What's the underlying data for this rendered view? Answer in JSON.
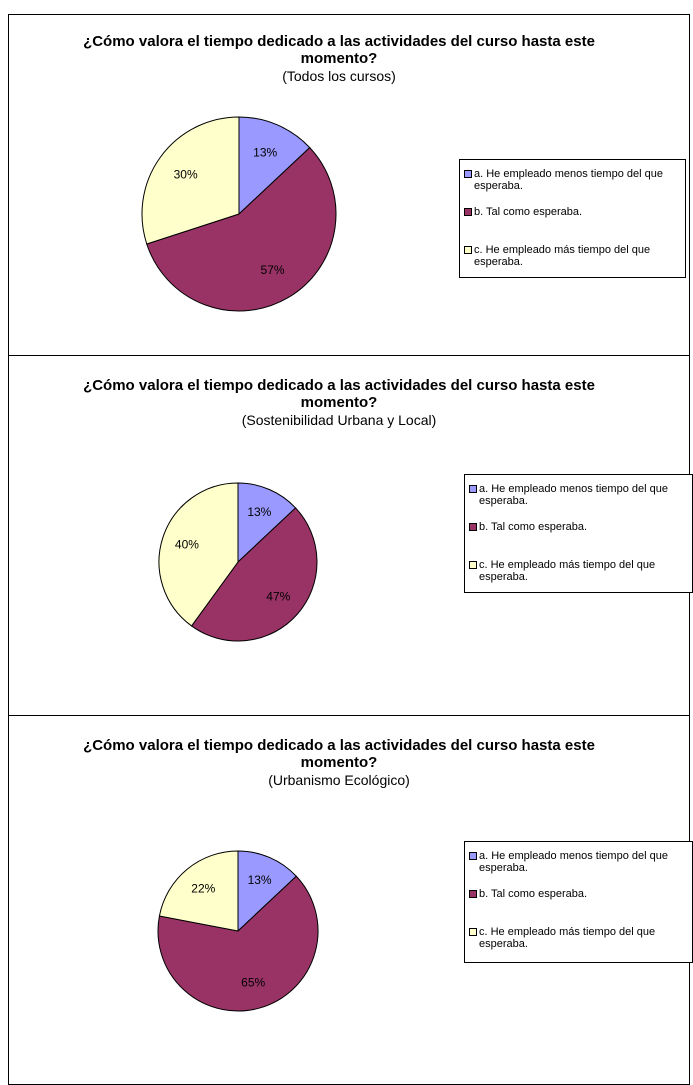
{
  "chart_data": [
    {
      "type": "pie",
      "title": "¿Cómo valora el tiempo dedicado a las actividades del curso hasta este momento?",
      "subtitle": "(Todos los cursos)",
      "categories": [
        "a. He empleado menos tiempo del que esperaba.",
        "b. Tal como esperaba.",
        "c. He empleado más tiempo del que esperaba."
      ],
      "values": [
        13,
        57,
        30
      ],
      "value_labels": [
        "13%",
        "57%",
        "30%"
      ],
      "colors": [
        "#9999ff",
        "#993366",
        "#ffffcc"
      ]
    },
    {
      "type": "pie",
      "title": "¿Cómo valora el tiempo dedicado a las actividades del curso hasta este momento?",
      "subtitle": "(Sostenibilidad Urbana y Local)",
      "categories": [
        "a. He empleado menos tiempo del que esperaba.",
        "b. Tal como esperaba.",
        "c. He empleado más tiempo del que esperaba."
      ],
      "values": [
        13,
        47,
        40
      ],
      "value_labels": [
        "13%",
        "47%",
        "40%"
      ],
      "colors": [
        "#9999ff",
        "#993366",
        "#ffffcc"
      ]
    },
    {
      "type": "pie",
      "title": "¿Cómo valora el tiempo dedicado a las actividades del curso hasta este momento?",
      "subtitle": "(Urbanismo Ecológico)",
      "categories": [
        "a. He empleado menos tiempo del que esperaba.",
        "b. Tal como esperaba.",
        "c. He empleado más tiempo del que esperaba."
      ],
      "values": [
        13,
        65,
        22
      ],
      "value_labels": [
        "13%",
        "65%",
        "22%"
      ],
      "colors": [
        "#9999ff",
        "#993366",
        "#ffffcc"
      ]
    }
  ]
}
